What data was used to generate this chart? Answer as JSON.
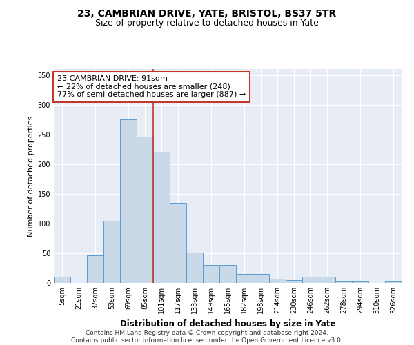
{
  "title1": "23, CAMBRIAN DRIVE, YATE, BRISTOL, BS37 5TR",
  "title2": "Size of property relative to detached houses in Yate",
  "xlabel": "Distribution of detached houses by size in Yate",
  "ylabel": "Number of detached properties",
  "categories": [
    "5sqm",
    "21sqm",
    "37sqm",
    "53sqm",
    "69sqm",
    "85sqm",
    "101sqm",
    "117sqm",
    "133sqm",
    "149sqm",
    "165sqm",
    "182sqm",
    "198sqm",
    "214sqm",
    "230sqm",
    "246sqm",
    "262sqm",
    "278sqm",
    "294sqm",
    "310sqm",
    "326sqm"
  ],
  "values": [
    10,
    0,
    47,
    105,
    275,
    246,
    221,
    135,
    51,
    30,
    30,
    15,
    15,
    7,
    5,
    10,
    10,
    3,
    3,
    0,
    3
  ],
  "bar_color": "#c9d9e8",
  "bar_edge_color": "#5b9bd5",
  "vline_color": "#c0392b",
  "vline_x_index": 5,
  "annotation_text": "23 CAMBRIAN DRIVE: 91sqm\n← 22% of detached houses are smaller (248)\n77% of semi-detached houses are larger (887) →",
  "annotation_box_color": "white",
  "annotation_box_edge_color": "#c0392b",
  "ylim": [
    0,
    360
  ],
  "yticks": [
    0,
    50,
    100,
    150,
    200,
    250,
    300,
    350
  ],
  "background_color": "#e8edf5",
  "footer": "Contains HM Land Registry data © Crown copyright and database right 2024.\nContains public sector information licensed under the Open Government Licence v3.0.",
  "title1_fontsize": 10,
  "title2_fontsize": 9,
  "xlabel_fontsize": 8.5,
  "ylabel_fontsize": 8,
  "tick_fontsize": 7,
  "annotation_fontsize": 8,
  "footer_fontsize": 6.5
}
